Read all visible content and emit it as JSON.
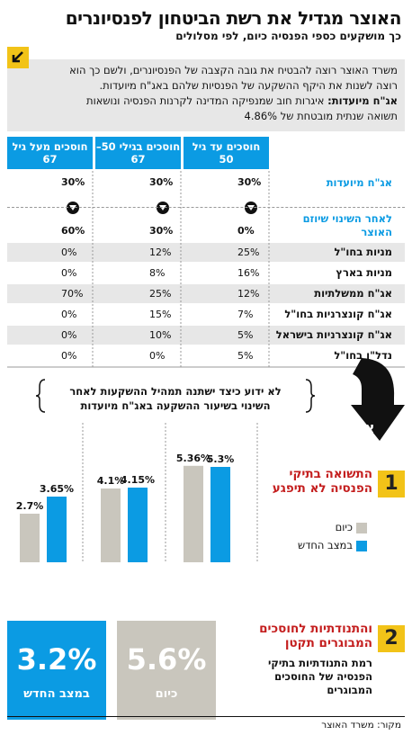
{
  "header": {
    "title": "האוצר מגדיל את רשת הביטחון לפנסיונרים",
    "subtitle": "כך מושקעים כספי הפנסיה כיום, לפי מסלולים"
  },
  "intro": {
    "line1": "משרד האוצר רוצה להבטיח את גובה הקצבה של הפנסיונרים, ולשם כך הוא",
    "line2": "רוצה לשנות את היקף ההשקעה של הפנסיות שלהם באג\"ח מיועדות.",
    "term": "אג\"ח מיועדות:",
    "line3": " איגרות חוב שמנפיקה המדינה לקרנות הפנסיה ונושאות",
    "line4": "תשואה שנתית מובטחת של 4.86%"
  },
  "table": {
    "columns": [
      "חוסכים עד גיל 50",
      "חוסכים בגילי 50–67",
      "חוסכים מעל גיל 67"
    ],
    "rows": [
      {
        "label": "אג\"ח מיועדות",
        "values": [
          "30%",
          "30%",
          "30%"
        ]
      },
      {
        "label": "לאחר השינוי שיוזם האוצר",
        "values": [
          "0%",
          "30%",
          "60%"
        ]
      },
      {
        "label": "מניות בחו\"ל",
        "values": [
          "25%",
          "12%",
          "0%"
        ]
      },
      {
        "label": "מניות בארץ",
        "values": [
          "16%",
          "8%",
          "0%"
        ]
      },
      {
        "label": "אג\"ח ממשלתיות",
        "values": [
          "12%",
          "25%",
          "70%"
        ]
      },
      {
        "label": "אג\"ח קונצרניות בחו\"ל",
        "values": [
          "7%",
          "15%",
          "0%"
        ]
      },
      {
        "label": "אג\"ח קונצרניות בישראל",
        "values": [
          "5%",
          "10%",
          "0%"
        ]
      },
      {
        "label": "נדל\"ן בחו\"ל",
        "values": [
          "5%",
          "0%",
          "0%"
        ]
      }
    ]
  },
  "bridge": {
    "line1": "לא ידוע כיצד ישתנה תמהיל ההשקעות לאחר",
    "line2": "השינוי בשיעור ההשקעה באג\"ח מיועדות",
    "arrow_label": "אבל"
  },
  "section1": {
    "number": "1",
    "heading_line1": "התשואה בתיקי",
    "heading_line2": "הפנסיה לא תיפגע"
  },
  "section2": {
    "number": "2",
    "heading_line1": "והתנודתיות לחוסכים",
    "heading_line2": "המבוגרים תקטן",
    "desc_line1": "רמת התנודתיות בתיקי",
    "desc_line2": "הפנסיה של החוסכים",
    "desc_line3": "המבוגרים",
    "kpi_current": {
      "value": "5.6%",
      "label": "כיום"
    },
    "kpi_new": {
      "value": "3.2%",
      "label": "במצב החדש"
    }
  },
  "chart_data": {
    "type": "bar",
    "categories": [
      "חוסכים עד גיל 50",
      "חוסכים בגילי 50–67",
      "חוסכים מעל גיל 67"
    ],
    "series": [
      {
        "name": "כיום",
        "values": [
          5.36,
          4.1,
          2.7
        ],
        "labels": [
          "5.36%",
          "4.1%",
          "2.7%"
        ],
        "color": "#c9c6bd"
      },
      {
        "name": "במצב החדש",
        "values": [
          5.3,
          4.15,
          3.65
        ],
        "labels": [
          "5.3%",
          "4.15%",
          "3.65%"
        ],
        "color": "#0b9be3"
      }
    ],
    "ylim": [
      0,
      6.5
    ]
  },
  "colors": {
    "accent_blue": "#0b9be3",
    "accent_yellow": "#f2c318",
    "accent_red": "#c41e1e",
    "gray": "#c9c6bd"
  },
  "source": "מקור: משרד האוצר"
}
